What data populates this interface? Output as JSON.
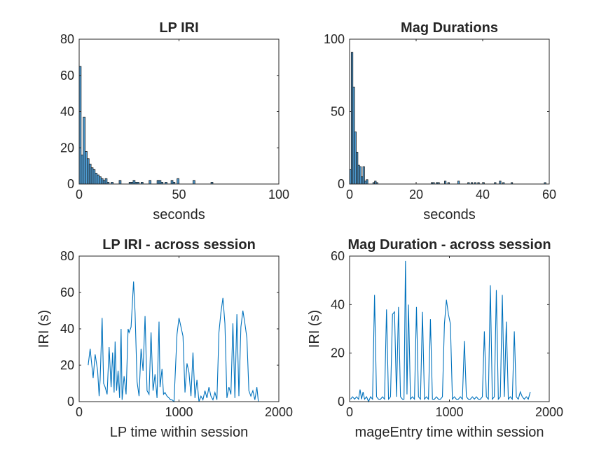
{
  "chart_data": [
    {
      "type": "bar",
      "title": "LP IRI",
      "xlabel": "seconds",
      "ylabel": "",
      "xlim": [
        0,
        100
      ],
      "ylim": [
        0,
        80
      ],
      "xticks": [
        0,
        50,
        100
      ],
      "yticks": [
        0,
        20,
        40,
        60,
        80
      ],
      "color": "#4d9bd2",
      "bins": [
        {
          "x0": 0,
          "x1": 1,
          "count": 65
        },
        {
          "x0": 1,
          "x1": 2,
          "count": 16
        },
        {
          "x0": 2,
          "x1": 3,
          "count": 37
        },
        {
          "x0": 3,
          "x1": 4,
          "count": 18
        },
        {
          "x0": 4,
          "x1": 5,
          "count": 14
        },
        {
          "x0": 5,
          "x1": 6,
          "count": 11
        },
        {
          "x0": 6,
          "x1": 7,
          "count": 9
        },
        {
          "x0": 7,
          "x1": 8,
          "count": 8
        },
        {
          "x0": 8,
          "x1": 9,
          "count": 6
        },
        {
          "x0": 9,
          "x1": 10,
          "count": 5
        },
        {
          "x0": 10,
          "x1": 11,
          "count": 4
        },
        {
          "x0": 11,
          "x1": 12,
          "count": 3
        },
        {
          "x0": 12,
          "x1": 13,
          "count": 2
        },
        {
          "x0": 13,
          "x1": 14,
          "count": 3
        },
        {
          "x0": 14,
          "x1": 15,
          "count": 1
        },
        {
          "x0": 16,
          "x1": 17,
          "count": 1
        },
        {
          "x0": 20,
          "x1": 21,
          "count": 2
        },
        {
          "x0": 25,
          "x1": 26,
          "count": 1
        },
        {
          "x0": 26,
          "x1": 27,
          "count": 1
        },
        {
          "x0": 27,
          "x1": 28,
          "count": 2
        },
        {
          "x0": 28,
          "x1": 29,
          "count": 1
        },
        {
          "x0": 29,
          "x1": 30,
          "count": 1
        },
        {
          "x0": 31,
          "x1": 32,
          "count": 1
        },
        {
          "x0": 35,
          "x1": 36,
          "count": 2
        },
        {
          "x0": 39,
          "x1": 40,
          "count": 2
        },
        {
          "x0": 40,
          "x1": 41,
          "count": 2
        },
        {
          "x0": 41,
          "x1": 42,
          "count": 1
        },
        {
          "x0": 43,
          "x1": 44,
          "count": 1
        },
        {
          "x0": 46,
          "x1": 47,
          "count": 2
        },
        {
          "x0": 47,
          "x1": 48,
          "count": 1
        },
        {
          "x0": 49,
          "x1": 50,
          "count": 3
        },
        {
          "x0": 57,
          "x1": 58,
          "count": 2
        },
        {
          "x0": 66,
          "x1": 67,
          "count": 1
        }
      ]
    },
    {
      "type": "bar",
      "title": "Mag Durations",
      "xlabel": "seconds",
      "ylabel": "",
      "xlim": [
        0,
        60
      ],
      "ylim": [
        0,
        100
      ],
      "xticks": [
        0,
        20,
        40,
        60
      ],
      "yticks": [
        0,
        50,
        100
      ],
      "color": "#4d9bd2",
      "bins": [
        {
          "x0": 0,
          "x1": 0.5,
          "count": 10
        },
        {
          "x0": 0.5,
          "x1": 1,
          "count": 91
        },
        {
          "x0": 1,
          "x1": 1.5,
          "count": 67
        },
        {
          "x0": 1.5,
          "x1": 2,
          "count": 36
        },
        {
          "x0": 2,
          "x1": 2.5,
          "count": 22
        },
        {
          "x0": 2.5,
          "x1": 3,
          "count": 13
        },
        {
          "x0": 3,
          "x1": 3.5,
          "count": 12
        },
        {
          "x0": 3.5,
          "x1": 4,
          "count": 5
        },
        {
          "x0": 4,
          "x1": 4.5,
          "count": 12
        },
        {
          "x0": 4.5,
          "x1": 5,
          "count": 2
        },
        {
          "x0": 5,
          "x1": 5.5,
          "count": 3
        },
        {
          "x0": 7,
          "x1": 7.5,
          "count": 1
        },
        {
          "x0": 7.5,
          "x1": 8,
          "count": 2
        },
        {
          "x0": 8,
          "x1": 8.5,
          "count": 1
        },
        {
          "x0": 24.5,
          "x1": 25,
          "count": 1
        },
        {
          "x0": 25,
          "x1": 25.5,
          "count": 1
        },
        {
          "x0": 26,
          "x1": 26.5,
          "count": 1
        },
        {
          "x0": 26.5,
          "x1": 27,
          "count": 1
        },
        {
          "x0": 28.5,
          "x1": 29,
          "count": 2
        },
        {
          "x0": 29.5,
          "x1": 30,
          "count": 1
        },
        {
          "x0": 32.5,
          "x1": 33,
          "count": 2
        },
        {
          "x0": 35.5,
          "x1": 36,
          "count": 1
        },
        {
          "x0": 36.5,
          "x1": 37,
          "count": 1
        },
        {
          "x0": 37.5,
          "x1": 38,
          "count": 1
        },
        {
          "x0": 38.5,
          "x1": 39,
          "count": 1
        },
        {
          "x0": 40,
          "x1": 40.5,
          "count": 1
        },
        {
          "x0": 43.5,
          "x1": 44,
          "count": 1
        },
        {
          "x0": 45,
          "x1": 45.5,
          "count": 2
        },
        {
          "x0": 46,
          "x1": 46.5,
          "count": 1
        },
        {
          "x0": 48.5,
          "x1": 49,
          "count": 1
        },
        {
          "x0": 58.5,
          "x1": 59,
          "count": 1
        }
      ]
    },
    {
      "type": "line",
      "title": "LP IRI - across session",
      "xlabel": "LP time within session",
      "ylabel": "IRI (s)",
      "xlim": [
        0,
        2000
      ],
      "ylim": [
        0,
        80
      ],
      "xticks": [
        0,
        1000,
        2000
      ],
      "yticks": [
        0,
        20,
        40,
        60,
        80
      ],
      "color": "#0072bd",
      "x": [
        90,
        110,
        140,
        160,
        185,
        200,
        210,
        230,
        245,
        260,
        280,
        300,
        320,
        335,
        350,
        360,
        375,
        390,
        405,
        420,
        430,
        450,
        470,
        490,
        500,
        520,
        545,
        560,
        580,
        600,
        620,
        640,
        660,
        680,
        700,
        720,
        740,
        760,
        780,
        800,
        810,
        830,
        845,
        860,
        880,
        900,
        915,
        930,
        950,
        980,
        1000,
        1020,
        1040,
        1060,
        1080,
        1100,
        1120,
        1140,
        1160,
        1180,
        1200,
        1220,
        1240,
        1260,
        1280,
        1300,
        1320,
        1340,
        1360,
        1380,
        1400,
        1420,
        1440,
        1460,
        1480,
        1500,
        1520,
        1540,
        1560,
        1580,
        1600,
        1620,
        1640,
        1660,
        1680,
        1700,
        1720,
        1740,
        1760,
        1780,
        1795
      ],
      "y": [
        20,
        29,
        13,
        26,
        17,
        3,
        12,
        46,
        10,
        8,
        4,
        30,
        8,
        27,
        5,
        33,
        6,
        17,
        2,
        40,
        1,
        14,
        4,
        40,
        38,
        41,
        66,
        49,
        11,
        3,
        29,
        17,
        47,
        6,
        4,
        38,
        6,
        15,
        2,
        44,
        8,
        18,
        4,
        5,
        3,
        2,
        1,
        1,
        0,
        37,
        46,
        41,
        36,
        5,
        21,
        16,
        3,
        27,
        2,
        12,
        0,
        3,
        1,
        6,
        2,
        8,
        3,
        1,
        5,
        1,
        38,
        49,
        57,
        43,
        2,
        8,
        4,
        43,
        2,
        48,
        3,
        41,
        50,
        43,
        35,
        6,
        3,
        6,
        1,
        8,
        0
      ]
    },
    {
      "type": "line",
      "title": "Mag Duration - across session",
      "xlabel": "mageEntry time within session",
      "ylabel": "IRI (s)",
      "xlim": [
        0,
        2000
      ],
      "ylim": [
        0,
        60
      ],
      "xticks": [
        0,
        1000,
        2000
      ],
      "yticks": [
        0,
        20,
        40,
        60
      ],
      "color": "#0072bd",
      "x": [
        10,
        30,
        50,
        70,
        90,
        105,
        120,
        135,
        150,
        170,
        190,
        210,
        230,
        250,
        270,
        290,
        310,
        330,
        350,
        370,
        390,
        410,
        430,
        450,
        470,
        490,
        510,
        530,
        545,
        560,
        575,
        590,
        610,
        630,
        650,
        670,
        690,
        710,
        730,
        750,
        770,
        790,
        810,
        830,
        850,
        870,
        890,
        910,
        930,
        950,
        970,
        990,
        1010,
        1030,
        1050,
        1070,
        1090,
        1110,
        1130,
        1150,
        1170,
        1190,
        1210,
        1230,
        1250,
        1270,
        1290,
        1310,
        1330,
        1350,
        1370,
        1390,
        1410,
        1430,
        1450,
        1470,
        1490,
        1510,
        1530,
        1550,
        1570,
        1590,
        1610,
        1630,
        1650,
        1670,
        1690,
        1710,
        1730,
        1750,
        1770,
        1790,
        1810
      ],
      "y": [
        1,
        2,
        1,
        2,
        1,
        5,
        1,
        4,
        1,
        2,
        0,
        2,
        1,
        44,
        2,
        1,
        1,
        2,
        1,
        38,
        1,
        2,
        36,
        37,
        2,
        39,
        2,
        1,
        1,
        58,
        3,
        40,
        1,
        2,
        1,
        39,
        2,
        1,
        37,
        1,
        2,
        1,
        34,
        1,
        1,
        2,
        1,
        1,
        2,
        32,
        42,
        36,
        32,
        1,
        2,
        1,
        1,
        2,
        1,
        25,
        2,
        1,
        1,
        2,
        1,
        2,
        1,
        1,
        2,
        29,
        2,
        1,
        48,
        1,
        2,
        46,
        1,
        2,
        44,
        2,
        33,
        1,
        2,
        1,
        29,
        2,
        1,
        4,
        2,
        1,
        2,
        1,
        4
      ]
    }
  ]
}
